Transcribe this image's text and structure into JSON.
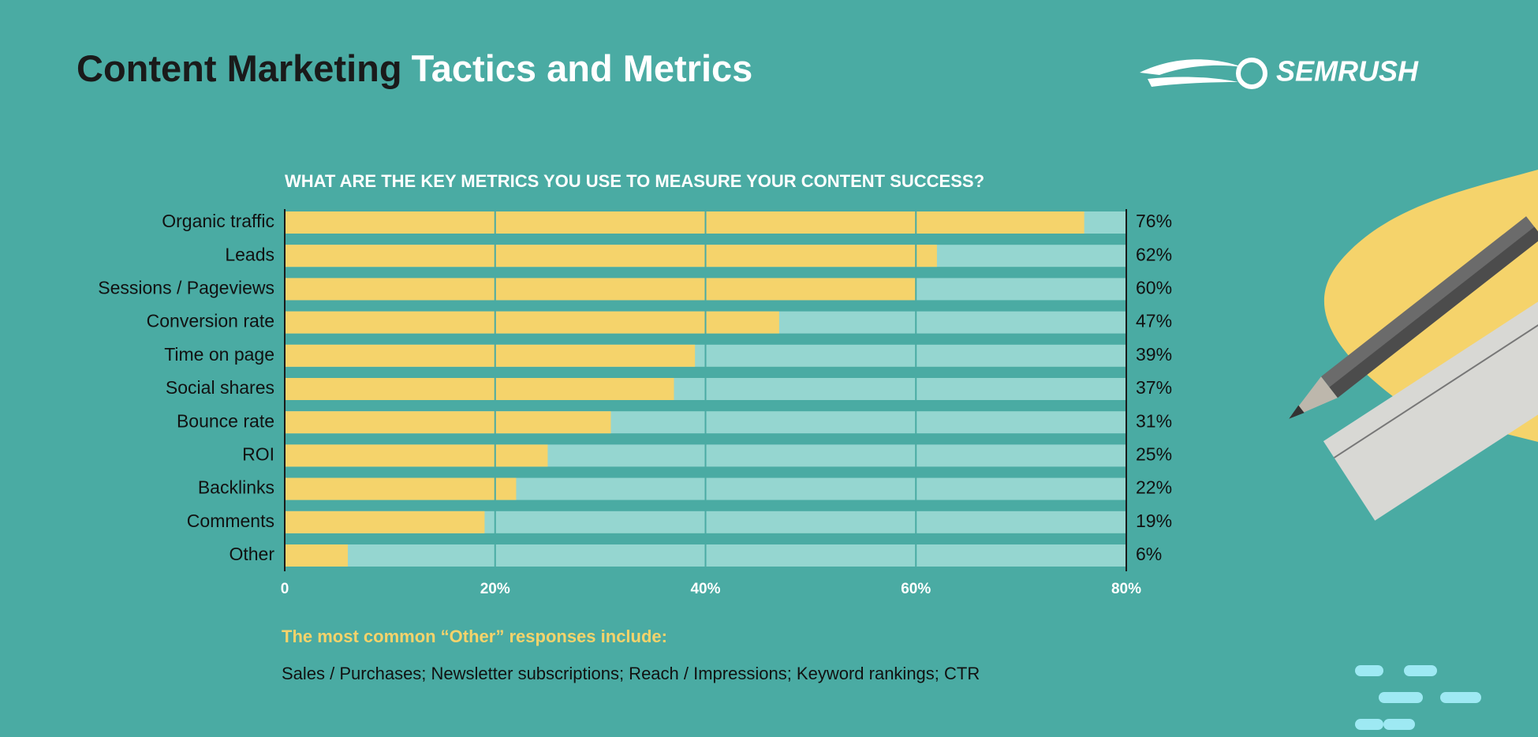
{
  "chart_data": {
    "type": "bar",
    "orientation": "horizontal",
    "title": [
      "Content Marketing",
      "Tactics and Metrics"
    ],
    "logo": "SEMRUSH",
    "subtitle": "WHAT ARE THE KEY METRICS YOU USE TO MEASURE YOUR CONTENT SUCCESS?",
    "categories": [
      "Organic traffic",
      "Leads",
      "Sessions / Pageviews",
      "Conversion rate",
      "Time on page",
      "Social shares",
      "Bounce rate",
      "ROI",
      "Backlinks",
      "Comments",
      "Other"
    ],
    "values": [
      76,
      62,
      60,
      47,
      39,
      37,
      31,
      25,
      22,
      19,
      6
    ],
    "value_labels": [
      "76%",
      "62%",
      "60%",
      "47%",
      "39%",
      "37%",
      "31%",
      "25%",
      "22%",
      "19%",
      "6%"
    ],
    "color": "#f5d36b",
    "xlim": [
      0,
      80
    ],
    "xticks": [
      0,
      {
        "value": 20,
        "label": "20%"
      },
      {
        "value": 40,
        "label": "40%"
      },
      {
        "value": 60,
        "label": "60%"
      },
      {
        "value": 80,
        "label": "80%"
      }
    ],
    "grid": true,
    "note_title": "The most common “Other” responses include:",
    "note": "Sales / Purchases; Newsletter subscriptions; Reach / Impressions; Keyword rankings; CTR"
  }
}
